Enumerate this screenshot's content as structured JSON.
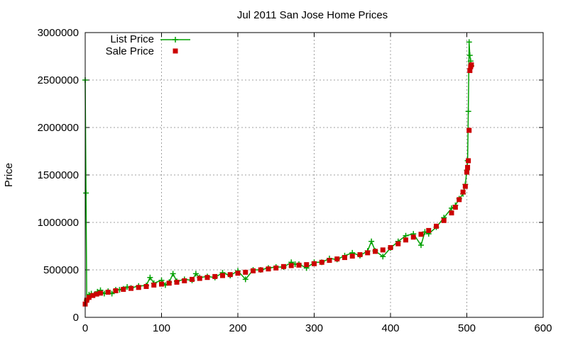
{
  "chart_data": {
    "type": "scatter",
    "title": "Jul 2011 San Jose Home Prices",
    "xlabel": "",
    "ylabel": "Price",
    "xlim": [
      0,
      600
    ],
    "ylim": [
      0,
      3000000
    ],
    "xticks": [
      "0",
      "100",
      "200",
      "300",
      "400",
      "500",
      "600"
    ],
    "yticks": [
      "0",
      "500000",
      "1000000",
      "1500000",
      "2000000",
      "2500000",
      "3000000"
    ],
    "grid": true,
    "legend_position": "top-left",
    "colors": {
      "list": "#00a000",
      "sale": "#cc0000"
    },
    "series": [
      {
        "name": "List Price",
        "style": "line-with-plus-markers",
        "x": [
          0,
          1,
          2,
          3,
          5,
          8,
          12,
          16,
          20,
          25,
          30,
          35,
          40,
          45,
          50,
          55,
          60,
          70,
          80,
          85,
          90,
          100,
          105,
          110,
          115,
          120,
          130,
          140,
          145,
          150,
          160,
          170,
          180,
          190,
          200,
          210,
          220,
          230,
          240,
          250,
          260,
          270,
          275,
          280,
          290,
          300,
          310,
          320,
          330,
          340,
          350,
          360,
          370,
          375,
          380,
          390,
          400,
          410,
          420,
          430,
          440,
          445,
          450,
          460,
          470,
          480,
          485,
          490,
          495,
          498,
          500,
          501,
          502,
          503,
          504,
          505,
          506
        ],
        "y": [
          2500000,
          1310000,
          180000,
          200000,
          240000,
          250000,
          240000,
          270000,
          285000,
          250000,
          275000,
          250000,
          290000,
          290000,
          300000,
          320000,
          310000,
          330000,
          335000,
          420000,
          360000,
          390000,
          340000,
          370000,
          460000,
          380000,
          400000,
          390000,
          460000,
          420000,
          430000,
          420000,
          470000,
          440000,
          490000,
          400000,
          500000,
          500000,
          520000,
          530000,
          530000,
          580000,
          560000,
          560000,
          520000,
          580000,
          580000,
          620000,
          610000,
          650000,
          680000,
          650000,
          700000,
          800000,
          700000,
          640000,
          730000,
          800000,
          860000,
          880000,
          760000,
          900000,
          880000,
          950000,
          1050000,
          1150000,
          1180000,
          1250000,
          1300000,
          1400000,
          1550000,
          1650000,
          2170000,
          2900000,
          2760000,
          2700000,
          2650000
        ]
      },
      {
        "name": "Sale Price",
        "style": "square-markers",
        "x": [
          0,
          2,
          5,
          10,
          15,
          20,
          30,
          40,
          50,
          60,
          70,
          80,
          90,
          100,
          110,
          120,
          130,
          140,
          150,
          160,
          170,
          180,
          190,
          200,
          210,
          220,
          230,
          240,
          250,
          260,
          270,
          280,
          290,
          300,
          310,
          320,
          330,
          340,
          350,
          360,
          370,
          380,
          390,
          400,
          410,
          420,
          430,
          440,
          450,
          460,
          470,
          480,
          485,
          490,
          495,
          498,
          500,
          501,
          502,
          503,
          504,
          505,
          506
        ],
        "y": [
          140000,
          180000,
          210000,
          230000,
          245000,
          255000,
          265000,
          280000,
          295000,
          305000,
          315000,
          325000,
          340000,
          350000,
          360000,
          370000,
          385000,
          400000,
          410000,
          420000,
          430000,
          440000,
          450000,
          465000,
          475000,
          490000,
          500000,
          510000,
          520000,
          535000,
          545000,
          550000,
          555000,
          565000,
          580000,
          600000,
          615000,
          630000,
          645000,
          660000,
          680000,
          695000,
          710000,
          735000,
          775000,
          815000,
          845000,
          875000,
          915000,
          960000,
          1020000,
          1100000,
          1160000,
          1240000,
          1320000,
          1380000,
          1530000,
          1580000,
          1650000,
          1970000,
          2600000,
          2640000,
          2660000
        ]
      }
    ]
  }
}
